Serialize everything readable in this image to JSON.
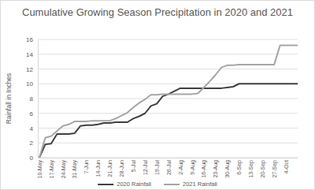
{
  "chart_data": {
    "type": "line",
    "title": "Cumulative Growing Season Precipitation in 2020 and 2021",
    "y_label": "Rainfall in Inches",
    "categories": [
      "10-May",
      null,
      "17-May",
      null,
      "24-May",
      null,
      "31-May",
      null,
      "7-Jun",
      null,
      "14-Jun",
      null,
      "21-Jun",
      null,
      "28-Jun",
      null,
      "5-Jul",
      null,
      "12-Jul",
      null,
      "19-Jul",
      null,
      "26-Jul",
      null,
      "2-Aug",
      null,
      "9-Aug",
      null,
      "16-Aug",
      null,
      "23-Aug",
      null,
      "30-Aug",
      null,
      "6-Sep",
      null,
      "13-Sep",
      null,
      "20-Sep",
      null,
      "27-Sep",
      null,
      "4-Oct",
      null,
      null
    ],
    "series": [
      {
        "name": "2020 Rainfall",
        "color": "#404040",
        "values": [
          0,
          1.8,
          1.9,
          3.2,
          3.2,
          3.2,
          3.3,
          4.3,
          4.4,
          4.4,
          4.5,
          4.7,
          4.7,
          4.8,
          4.8,
          4.8,
          5.3,
          5.6,
          6.0,
          7.0,
          7.3,
          8.3,
          8.6,
          9.0,
          9.4,
          9.4,
          9.4,
          9.4,
          9.4,
          9.4,
          9.4,
          9.4,
          9.5,
          9.6,
          10.0,
          10.0,
          10.0,
          10.0,
          10.0,
          10.0,
          10.0,
          10.0,
          10.0,
          10.0,
          10.0
        ]
      },
      {
        "name": "2021 Rainfall",
        "color": "#a6a6a6",
        "values": [
          0,
          2.7,
          2.9,
          3.6,
          4.3,
          4.5,
          4.9,
          4.9,
          4.9,
          5.0,
          5.0,
          5.0,
          5.0,
          5.3,
          5.7,
          6.1,
          6.8,
          7.4,
          7.9,
          8.5,
          8.5,
          8.6,
          8.6,
          8.6,
          8.6,
          8.6,
          8.6,
          8.7,
          9.5,
          10.3,
          11.2,
          12.2,
          12.5,
          12.5,
          12.6,
          12.6,
          12.6,
          12.6,
          12.6,
          12.6,
          12.6,
          15.2,
          15.2,
          15.2,
          15.2
        ]
      }
    ],
    "ylim": [
      0,
      16
    ],
    "yticks": [
      0,
      2,
      4,
      6,
      8,
      10,
      12,
      14,
      16
    ],
    "grid": true,
    "legend": "bottom"
  }
}
